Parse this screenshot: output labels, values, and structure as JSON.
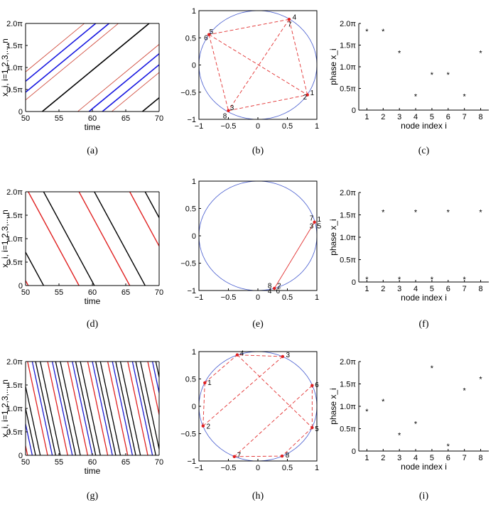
{
  "chart_data": [
    {
      "panel": "a",
      "type": "line",
      "caption": "(a)",
      "xlabel": "time",
      "ylabel": "x_i, i=1,2,3,...,n",
      "xlim": [
        50,
        70
      ],
      "ylim": [
        0,
        6.2832
      ],
      "xticks": [
        50,
        55,
        60,
        65,
        70
      ],
      "xtick_labels": [
        "50",
        "55",
        "60",
        "65",
        "70"
      ],
      "yticks": [
        0,
        1.5708,
        3.1416,
        4.7124,
        6.2832
      ],
      "ytick_labels": [
        "0",
        "0.5π",
        "1.0π",
        "1.5π",
        "2.0π"
      ],
      "slope_per_time": 0.3927,
      "series": [
        {
          "name": "black",
          "color": "#000000",
          "width": 1.6,
          "offsets": [
            52.5,
            67.5
          ]
        },
        {
          "name": "blue",
          "color": "#1515e0",
          "width": 1.6,
          "offsets": [
            46.5,
            61.5,
            44.5,
            59.5
          ]
        },
        {
          "name": "red",
          "color": "#cc3b2b",
          "width": 0.8,
          "offsets": [
            42.8,
            57.8,
            47.9,
            62.9
          ]
        }
      ]
    },
    {
      "panel": "b",
      "type": "scatter",
      "caption": "(b)",
      "xlim": [
        -1,
        1
      ],
      "ylim": [
        -1,
        1
      ],
      "xticks": [
        -1,
        -0.5,
        0,
        0.5,
        1
      ],
      "xtick_labels": [
        "−1",
        "−0.5",
        "0",
        "0.5",
        "1"
      ],
      "yticks": [
        -1,
        -0.5,
        0,
        0.5,
        1
      ],
      "ytick_labels": [
        "−1",
        "−0.5",
        "0",
        "0.5",
        "1"
      ],
      "points": [
        {
          "x": 0.53,
          "y": 0.84
        },
        {
          "x": -0.83,
          "y": 0.56
        },
        {
          "x": -0.5,
          "y": -0.84
        },
        {
          "x": 0.84,
          "y": -0.55
        }
      ],
      "labels": [
        {
          "text": "1",
          "x": 0.92,
          "y": -0.5
        },
        {
          "text": "2",
          "x": 0.8,
          "y": -0.58
        },
        {
          "text": "3",
          "x": -0.44,
          "y": -0.78
        },
        {
          "text": "8",
          "x": -0.56,
          "y": -0.93
        },
        {
          "text": "4",
          "x": 0.62,
          "y": 0.89
        },
        {
          "text": "7",
          "x": 0.54,
          "y": 0.76
        },
        {
          "text": "5",
          "x": -0.79,
          "y": 0.62
        },
        {
          "text": "6",
          "x": -0.88,
          "y": 0.51
        }
      ],
      "edges": [
        [
          0,
          1
        ],
        [
          1,
          2
        ],
        [
          2,
          3
        ],
        [
          0,
          2
        ],
        [
          3,
          0
        ],
        [
          1,
          3
        ]
      ]
    },
    {
      "panel": "c",
      "type": "scatter",
      "caption": "(c)",
      "xlabel": "node index i",
      "ylabel": "phase x_i",
      "xlim": [
        0.5,
        8.5
      ],
      "ylim": [
        0,
        6.2832
      ],
      "xticks": [
        1,
        2,
        3,
        4,
        5,
        6,
        7,
        8
      ],
      "xtick_labels": [
        "1",
        "2",
        "3",
        "4",
        "5",
        "6",
        "7",
        "8"
      ],
      "yticks": [
        0,
        1.5708,
        3.1416,
        4.7124,
        6.2832
      ],
      "ytick_labels": [
        "0",
        "0.5π",
        "1.0π",
        "1.5π",
        "2.0π"
      ],
      "x": [
        1,
        2,
        3,
        4,
        5,
        6,
        7,
        8
      ],
      "y": [
        5.76,
        5.76,
        4.19,
        1.05,
        2.62,
        2.62,
        1.05,
        4.19
      ]
    },
    {
      "panel": "d",
      "type": "line",
      "caption": "(d)",
      "xlabel": "time",
      "ylabel": "x_i, i=1,2,3,...,n",
      "xlim": [
        50,
        70
      ],
      "ylim": [
        0,
        6.2832
      ],
      "xticks": [
        50,
        55,
        60,
        65,
        70
      ],
      "xtick_labels": [
        "50",
        "55",
        "60",
        "65",
        "70"
      ],
      "yticks": [
        0,
        1.5708,
        3.1416,
        4.7124,
        6.2832
      ],
      "ytick_labels": [
        "0",
        "0.5π",
        "1.0π",
        "1.5π",
        "2.0π"
      ],
      "slope_per_time": -0.8267,
      "series": [
        {
          "name": "red",
          "color": "#e02020",
          "width": 1.4,
          "offsets": [
            50.4,
            58.0,
            65.6,
            73.2,
            42.8
          ]
        },
        {
          "name": "black",
          "color": "#000000",
          "width": 1.4,
          "offsets": [
            52.7,
            60.3,
            67.9,
            75.5,
            45.1
          ]
        }
      ]
    },
    {
      "panel": "e",
      "type": "scatter",
      "caption": "(e)",
      "xlim": [
        -1,
        1
      ],
      "ylim": [
        -1,
        1
      ],
      "xticks": [
        -1,
        -0.5,
        0,
        0.5,
        1
      ],
      "xtick_labels": [
        "−1",
        "−0.5",
        "0",
        "0.5",
        "1"
      ],
      "yticks": [
        -1,
        -0.5,
        0,
        0.5,
        1
      ],
      "ytick_labels": [
        "−1",
        "−0.5",
        "0",
        "0.5",
        "1"
      ],
      "points": [
        {
          "x": 0.96,
          "y": 0.25
        },
        {
          "x": 0.28,
          "y": -0.96
        }
      ],
      "labels": [
        {
          "text": "7",
          "x": 0.91,
          "y": 0.33
        },
        {
          "text": "1",
          "x": 1.04,
          "y": 0.31
        },
        {
          "text": "3",
          "x": 0.91,
          "y": 0.19
        },
        {
          "text": "5",
          "x": 1.04,
          "y": 0.19
        },
        {
          "text": "8",
          "x": 0.2,
          "y": -0.9
        },
        {
          "text": "2",
          "x": 0.36,
          "y": -0.9
        },
        {
          "text": "4",
          "x": 0.2,
          "y": -1.0
        },
        {
          "text": "6",
          "x": 0.34,
          "y": -1.0
        }
      ],
      "edges": [
        [
          0,
          1
        ]
      ]
    },
    {
      "panel": "f",
      "type": "scatter",
      "caption": "(f)",
      "xlabel": "node index i",
      "ylabel": "phase x_i",
      "xlim": [
        0.5,
        8.5
      ],
      "ylim": [
        0,
        6.2832
      ],
      "xticks": [
        1,
        2,
        3,
        4,
        5,
        6,
        7,
        8
      ],
      "xtick_labels": [
        "1",
        "2",
        "3",
        "4",
        "5",
        "6",
        "7",
        "8"
      ],
      "yticks": [
        0,
        1.5708,
        3.1416,
        4.7124,
        6.2832
      ],
      "ytick_labels": [
        "0",
        "0.5π",
        "1.0π",
        "1.5π",
        "2.0π"
      ],
      "x": [
        1,
        2,
        3,
        4,
        5,
        6,
        7,
        8
      ],
      "y": [
        0.25,
        4.95,
        0.25,
        4.95,
        0.25,
        4.95,
        0.25,
        4.95
      ]
    },
    {
      "panel": "g",
      "type": "line",
      "caption": "(g)",
      "xlabel": "time",
      "ylabel": "x_i, i=1,2,3,...,n",
      "xlim": [
        50,
        70
      ],
      "ylim": [
        0,
        6.2832
      ],
      "xticks": [
        50,
        55,
        60,
        65,
        70
      ],
      "xtick_labels": [
        "50",
        "55",
        "60",
        "65",
        "70"
      ],
      "yticks": [
        0,
        1.5708,
        3.1416,
        4.7124,
        6.2832
      ],
      "ytick_labels": [
        "0",
        "0.5π",
        "1.0π",
        "1.5π",
        "2.0π"
      ],
      "slope_per_time": -2.0944,
      "series": [
        {
          "name": "red",
          "color": "#e02020",
          "width": 1.3,
          "offsets": [
            50.3,
            53.3,
            56.3,
            59.3,
            62.3,
            65.3,
            68.3,
            71.3,
            47.3,
            44.3
          ]
        },
        {
          "name": "blue",
          "color": "#1a1ad0",
          "width": 1.3,
          "offsets": [
            51.0,
            54.0,
            57.0,
            60.0,
            63.0,
            66.0,
            69.0,
            72.0,
            48.0,
            45.0
          ]
        },
        {
          "name": "black",
          "color": "#000000",
          "width": 1.3,
          "offsets": [
            51.5,
            54.5,
            57.5,
            60.5,
            63.5,
            66.5,
            69.5,
            72.5,
            52.2,
            55.2,
            58.2,
            61.2,
            64.2,
            67.2,
            70.2,
            73.2,
            48.5,
            49.2,
            45.5,
            46.2
          ]
        }
      ]
    },
    {
      "panel": "h",
      "type": "scatter",
      "caption": "(h)",
      "xlim": [
        -1,
        1
      ],
      "ylim": [
        -1,
        1
      ],
      "xticks": [
        -1,
        -0.5,
        0,
        0.5,
        1
      ],
      "xtick_labels": [
        "−1",
        "−0.5",
        "0",
        "0.5",
        "1"
      ],
      "yticks": [
        -1,
        -0.5,
        0,
        0.5,
        1
      ],
      "ytick_labels": [
        "−1",
        "−0.5",
        "0",
        "0.5",
        "1"
      ],
      "points": [
        {
          "x": -0.9,
          "y": 0.43
        },
        {
          "x": -0.93,
          "y": -0.36
        },
        {
          "x": 0.42,
          "y": 0.91
        },
        {
          "x": -0.35,
          "y": 0.94
        },
        {
          "x": 0.92,
          "y": -0.39
        },
        {
          "x": 0.92,
          "y": 0.38
        },
        {
          "x": -0.4,
          "y": -0.92
        },
        {
          "x": 0.41,
          "y": -0.91
        }
      ],
      "labels": [
        {
          "text": "1",
          "x": -0.82,
          "y": 0.44
        },
        {
          "text": "2",
          "x": -0.84,
          "y": -0.36
        },
        {
          "text": "3",
          "x": 0.51,
          "y": 0.95
        },
        {
          "text": "4",
          "x": -0.27,
          "y": 0.98
        },
        {
          "text": "5",
          "x": 1.0,
          "y": -0.4
        },
        {
          "text": "6",
          "x": 1.0,
          "y": 0.4
        },
        {
          "text": "7",
          "x": -0.32,
          "y": -0.88
        },
        {
          "text": "8",
          "x": 0.5,
          "y": -0.88
        }
      ],
      "edges": [
        [
          0,
          1
        ],
        [
          1,
          2
        ],
        [
          2,
          3
        ],
        [
          3,
          4
        ],
        [
          4,
          5
        ],
        [
          5,
          6
        ],
        [
          6,
          7
        ],
        [
          0,
          3
        ],
        [
          4,
          7
        ]
      ]
    },
    {
      "panel": "i",
      "type": "scatter",
      "caption": "(i)",
      "xlabel": "node index i",
      "ylabel": "phase x_i",
      "xlim": [
        0.5,
        8.5
      ],
      "ylim": [
        0,
        6.2832
      ],
      "xticks": [
        1,
        2,
        3,
        4,
        5,
        6,
        7,
        8
      ],
      "xtick_labels": [
        "1",
        "2",
        "3",
        "4",
        "5",
        "6",
        "7",
        "8"
      ],
      "yticks": [
        0,
        1.5708,
        3.1416,
        4.7124,
        6.2832
      ],
      "ytick_labels": [
        "0",
        "0.5π",
        "1.0π",
        "1.5π",
        "2.0π"
      ],
      "x": [
        1,
        2,
        3,
        4,
        5,
        6,
        7,
        8
      ],
      "y": [
        2.83,
        3.53,
        1.17,
        1.96,
        5.89,
        0.39,
        4.32,
        5.11
      ]
    }
  ]
}
